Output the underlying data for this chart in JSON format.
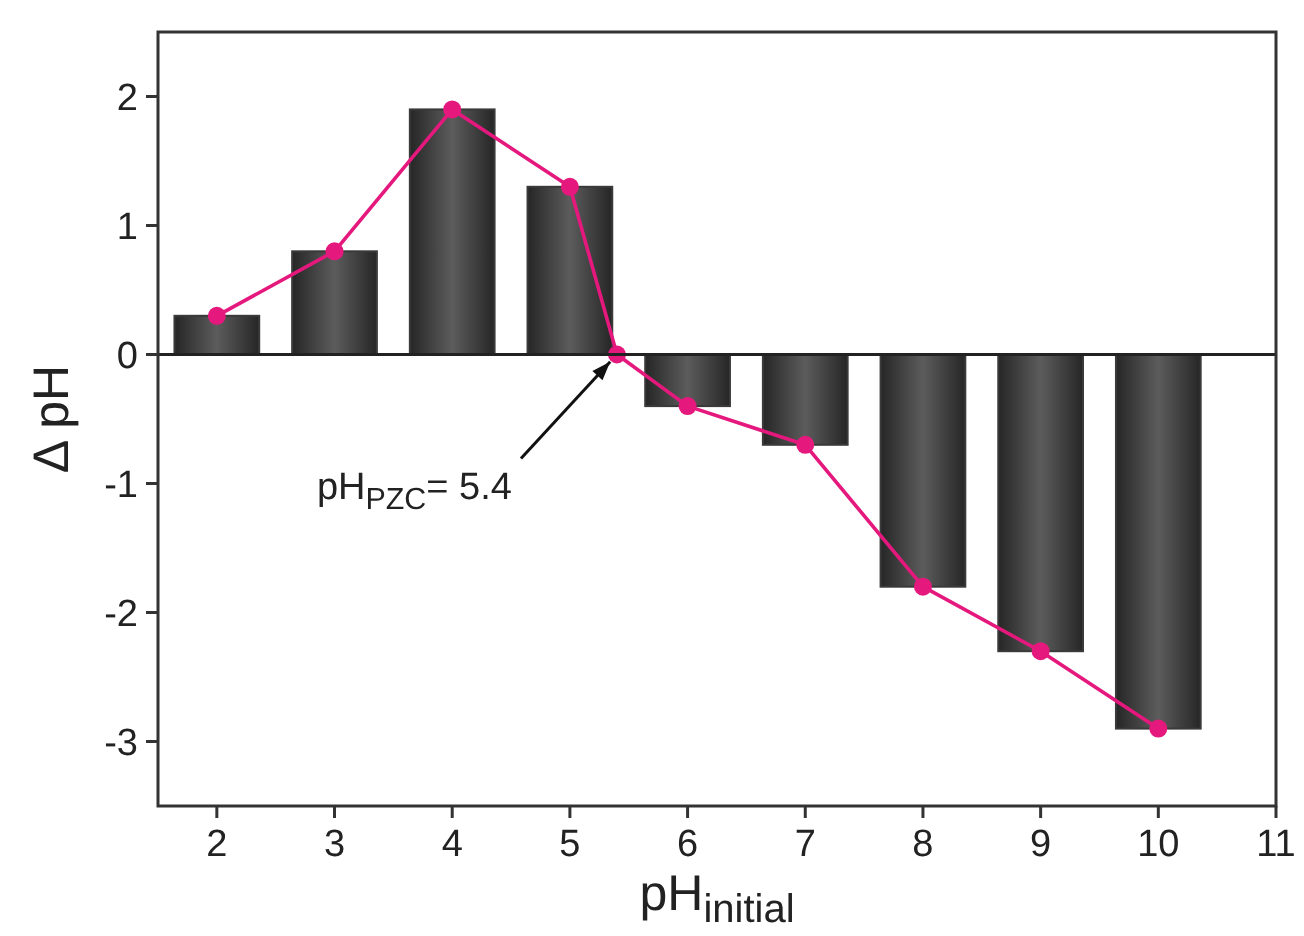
{
  "chart_data": {
    "type": "bar",
    "xlabel": "pH$_{initial}$",
    "ylabel": "Δ pH",
    "xlim": [
      1.5,
      11
    ],
    "xticks": [
      2,
      3,
      4,
      5,
      6,
      7,
      8,
      9,
      10,
      11
    ],
    "ylim": [
      -3.5,
      2.5
    ],
    "yticks": [
      -3,
      -2,
      -1,
      0,
      1,
      2
    ],
    "series": [
      {
        "color": "#3a3a3a",
        "x": [
          2,
          3,
          4,
          5,
          6,
          7,
          8,
          9,
          10
        ],
        "values": [
          0.3,
          0.8,
          1.9,
          1.3,
          -0.4,
          -0.7,
          -1.8,
          -2.3,
          -2.9
        ]
      },
      {
        "type": "line",
        "color": "#e5197d",
        "x": [
          2,
          3,
          4,
          5,
          5.4,
          6,
          7,
          8,
          9,
          10
        ],
        "values": [
          0.3,
          0.8,
          1.9,
          1.3,
          0,
          -0.4,
          -0.7,
          -1.8,
          -2.3,
          -2.9
        ],
        "marker": "circle",
        "line_style": "solid"
      }
    ],
    "ref_lines": [
      {
        "axis": "y",
        "value": 0
      }
    ],
    "annotations": [
      {
        "text": "pH$_{PZC}$= 5.4",
        "x": 5.4,
        "y": 0
      }
    ],
    "grid": false
  }
}
